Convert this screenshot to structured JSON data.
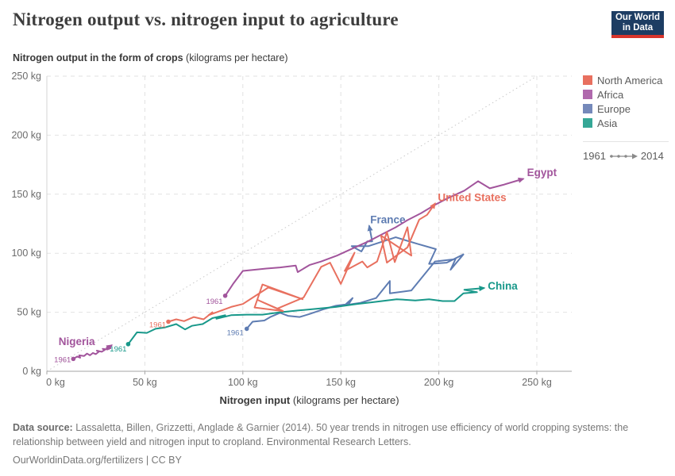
{
  "header": {
    "title": "Nitrogen output vs. nitrogen input to agriculture",
    "logo_line1": "Our World",
    "logo_line2": "in Data"
  },
  "y_axis_title": {
    "bold": "Nitrogen output in the form of crops",
    "rest": " (kilograms per hectare)"
  },
  "x_axis_title": {
    "bold": "Nitrogen input",
    "rest": " (kilograms per hectare)"
  },
  "legend": {
    "items": [
      {
        "label": "North America",
        "color": "#e8705f"
      },
      {
        "label": "Africa",
        "color": "#b069ad"
      },
      {
        "label": "Europe",
        "color": "#7589ba"
      },
      {
        "label": "Asia",
        "color": "#35a796"
      }
    ],
    "time_start": "1961",
    "time_end": "2014"
  },
  "footer": {
    "source_label": "Data source:",
    "source_text": " Lassaletta, Billen, Grizzetti, Anglade & Garnier (2014). 50 year trends in nitrogen use efficiency of world cropping systems: the relationship between yield and nitrogen input to cropland. Environmental Research Letters.",
    "link": "OurWorldinData.org/fertilizers",
    "separator": " | ",
    "license": "CC BY"
  },
  "chart_data": {
    "type": "line",
    "title": "Nitrogen output vs. nitrogen input to agriculture",
    "xlabel": "Nitrogen input (kilograms per hectare)",
    "ylabel": "Nitrogen output in the form of crops (kilograms per hectare)",
    "xlim": [
      0,
      250
    ],
    "ylim": [
      0,
      250
    ],
    "grid": true,
    "diagonal_reference": "y = x",
    "x_ticks": [
      {
        "v": 0,
        "label": "0 kg"
      },
      {
        "v": 50,
        "label": "50 kg"
      },
      {
        "v": 100,
        "label": "100 kg"
      },
      {
        "v": 150,
        "label": "150 kg"
      },
      {
        "v": 200,
        "label": "200 kg"
      },
      {
        "v": 250,
        "label": "250 kg"
      }
    ],
    "y_ticks": [
      {
        "v": 0,
        "label": "0 kg"
      },
      {
        "v": 50,
        "label": "50 kg"
      },
      {
        "v": 100,
        "label": "100 kg"
      },
      {
        "v": 150,
        "label": "150 kg"
      },
      {
        "v": 200,
        "label": "200 kg"
      },
      {
        "v": 250,
        "label": "250 kg"
      }
    ],
    "start_year": "1961",
    "end_year": "2014",
    "series": [
      {
        "name": "France",
        "region": "Europe",
        "color": "#5e7cb2",
        "year_label": "1961",
        "year_offset": [
          -4,
          8
        ],
        "name_label": {
          "x": 165,
          "y": 128,
          "anchor": "start"
        },
        "points": [
          [
            102,
            36
          ],
          [
            105,
            42
          ],
          [
            111,
            43
          ],
          [
            114,
            46
          ],
          [
            119,
            49.5
          ],
          [
            123,
            47
          ],
          [
            129,
            46
          ],
          [
            134,
            48.5
          ],
          [
            141,
            52.5
          ],
          [
            147.5,
            55.5
          ],
          [
            154,
            57
          ],
          [
            156,
            62
          ],
          [
            152,
            56
          ],
          [
            160,
            58
          ],
          [
            168,
            62
          ],
          [
            175,
            76.5
          ],
          [
            175,
            66
          ],
          [
            186,
            68.5
          ],
          [
            198,
            93
          ],
          [
            208.5,
            95
          ],
          [
            206,
            86
          ],
          [
            212.5,
            99
          ],
          [
            204,
            92
          ],
          [
            195,
            91
          ],
          [
            198.5,
            103.5
          ],
          [
            189,
            108
          ],
          [
            178,
            113.5
          ],
          [
            164,
            106
          ],
          [
            155.5,
            106
          ],
          [
            160.5,
            101.5
          ],
          [
            163.5,
            110
          ],
          [
            166,
            110
          ],
          [
            164.5,
            123
          ]
        ]
      },
      {
        "name": "China",
        "region": "Asia",
        "color": "#18988a",
        "year_label": "1961",
        "year_offset": [
          -2,
          9
        ],
        "name_label": {
          "x": 225,
          "y": 72,
          "anchor": "start"
        },
        "points": [
          [
            41.5,
            23
          ],
          [
            46,
            33
          ],
          [
            51,
            32.5
          ],
          [
            55.5,
            36
          ],
          [
            60,
            37
          ],
          [
            66,
            40
          ],
          [
            70.5,
            35.5
          ],
          [
            74,
            38.5
          ],
          [
            79.5,
            40
          ],
          [
            84.5,
            45
          ],
          [
            91,
            47.5
          ],
          [
            86.5,
            44.5
          ],
          [
            94,
            47.5
          ],
          [
            102,
            48
          ],
          [
            110,
            48
          ],
          [
            119,
            50
          ],
          [
            128,
            51.5
          ],
          [
            138,
            53
          ],
          [
            147.5,
            54.5
          ],
          [
            158,
            57
          ],
          [
            166,
            58.5
          ],
          [
            178.5,
            61
          ],
          [
            188,
            60
          ],
          [
            195,
            61
          ],
          [
            202,
            59.5
          ],
          [
            208,
            59.5
          ],
          [
            212.5,
            66
          ],
          [
            219.5,
            67
          ],
          [
            213,
            69
          ],
          [
            223,
            70.5
          ]
        ]
      },
      {
        "name": "Egypt",
        "region": "Africa",
        "color": "#a2559c",
        "year_label": "1961",
        "year_offset": [
          -3,
          10
        ],
        "name_label": {
          "x": 245,
          "y": 168,
          "anchor": "start"
        },
        "points": [
          [
            91,
            64
          ],
          [
            95,
            74
          ],
          [
            100,
            85
          ],
          [
            106,
            86
          ],
          [
            112,
            87
          ],
          [
            119,
            88
          ],
          [
            127,
            89.5
          ],
          [
            128,
            84
          ],
          [
            134,
            90
          ],
          [
            140,
            93
          ],
          [
            148,
            98
          ],
          [
            156,
            104
          ],
          [
            164,
            110
          ],
          [
            171,
            116
          ],
          [
            178,
            122
          ],
          [
            184,
            128
          ],
          [
            191,
            134
          ],
          [
            198,
            141
          ],
          [
            205,
            147
          ],
          [
            213,
            153
          ],
          [
            220,
            161
          ],
          [
            226,
            155
          ],
          [
            233,
            158
          ],
          [
            243,
            163
          ]
        ]
      },
      {
        "name": "Nigeria",
        "region": "Africa",
        "color": "#a2559c",
        "year_label": "1961",
        "year_offset": [
          -3,
          4
        ],
        "name_label": {
          "x": 6,
          "y": 25,
          "anchor": "start"
        },
        "points": [
          [
            13.5,
            10.5
          ],
          [
            15.5,
            12.5
          ],
          [
            17,
            11.5
          ],
          [
            16.5,
            13.5
          ],
          [
            19,
            13
          ],
          [
            20.5,
            15
          ],
          [
            22,
            13.5
          ],
          [
            23.5,
            15.5
          ],
          [
            25,
            14.5
          ],
          [
            26.5,
            16.5
          ],
          [
            25.5,
            17.5
          ],
          [
            28,
            16.5
          ],
          [
            29.5,
            18
          ],
          [
            28.5,
            19
          ],
          [
            31,
            18.5
          ],
          [
            30.5,
            20
          ],
          [
            32.5,
            19.5
          ],
          [
            32,
            21
          ],
          [
            33,
            22
          ]
        ]
      },
      {
        "name": "United States",
        "region": "North America",
        "color": "#e8705f",
        "year_label": "1961",
        "year_offset": [
          -3,
          7
        ],
        "name_label": {
          "x": 199.5,
          "y": 147,
          "anchor": "start"
        },
        "points": [
          [
            62,
            42
          ],
          [
            66,
            44
          ],
          [
            70,
            42.5
          ],
          [
            75,
            46
          ],
          [
            80,
            44
          ],
          [
            84.5,
            50
          ],
          [
            82.5,
            47.5
          ],
          [
            90,
            52
          ],
          [
            94,
            54.5
          ],
          [
            100,
            57
          ],
          [
            113,
            71
          ],
          [
            130.5,
            61
          ],
          [
            110,
            73.5
          ],
          [
            106,
            54
          ],
          [
            120.5,
            51
          ],
          [
            107.5,
            60.5
          ],
          [
            117.5,
            53
          ],
          [
            131,
            62.5
          ],
          [
            140,
            88.5
          ],
          [
            144.5,
            92
          ],
          [
            150,
            74
          ],
          [
            157,
            100.5
          ],
          [
            152,
            85
          ],
          [
            161,
            93
          ],
          [
            163.5,
            88
          ],
          [
            168.5,
            93
          ],
          [
            173.5,
            118
          ],
          [
            177.5,
            92.5
          ],
          [
            184,
            122
          ],
          [
            186,
            98
          ],
          [
            170.5,
            115
          ],
          [
            173.5,
            92
          ],
          [
            184,
            105
          ],
          [
            190,
            128.5
          ],
          [
            194,
            132.5
          ],
          [
            198,
            142
          ]
        ]
      }
    ]
  }
}
